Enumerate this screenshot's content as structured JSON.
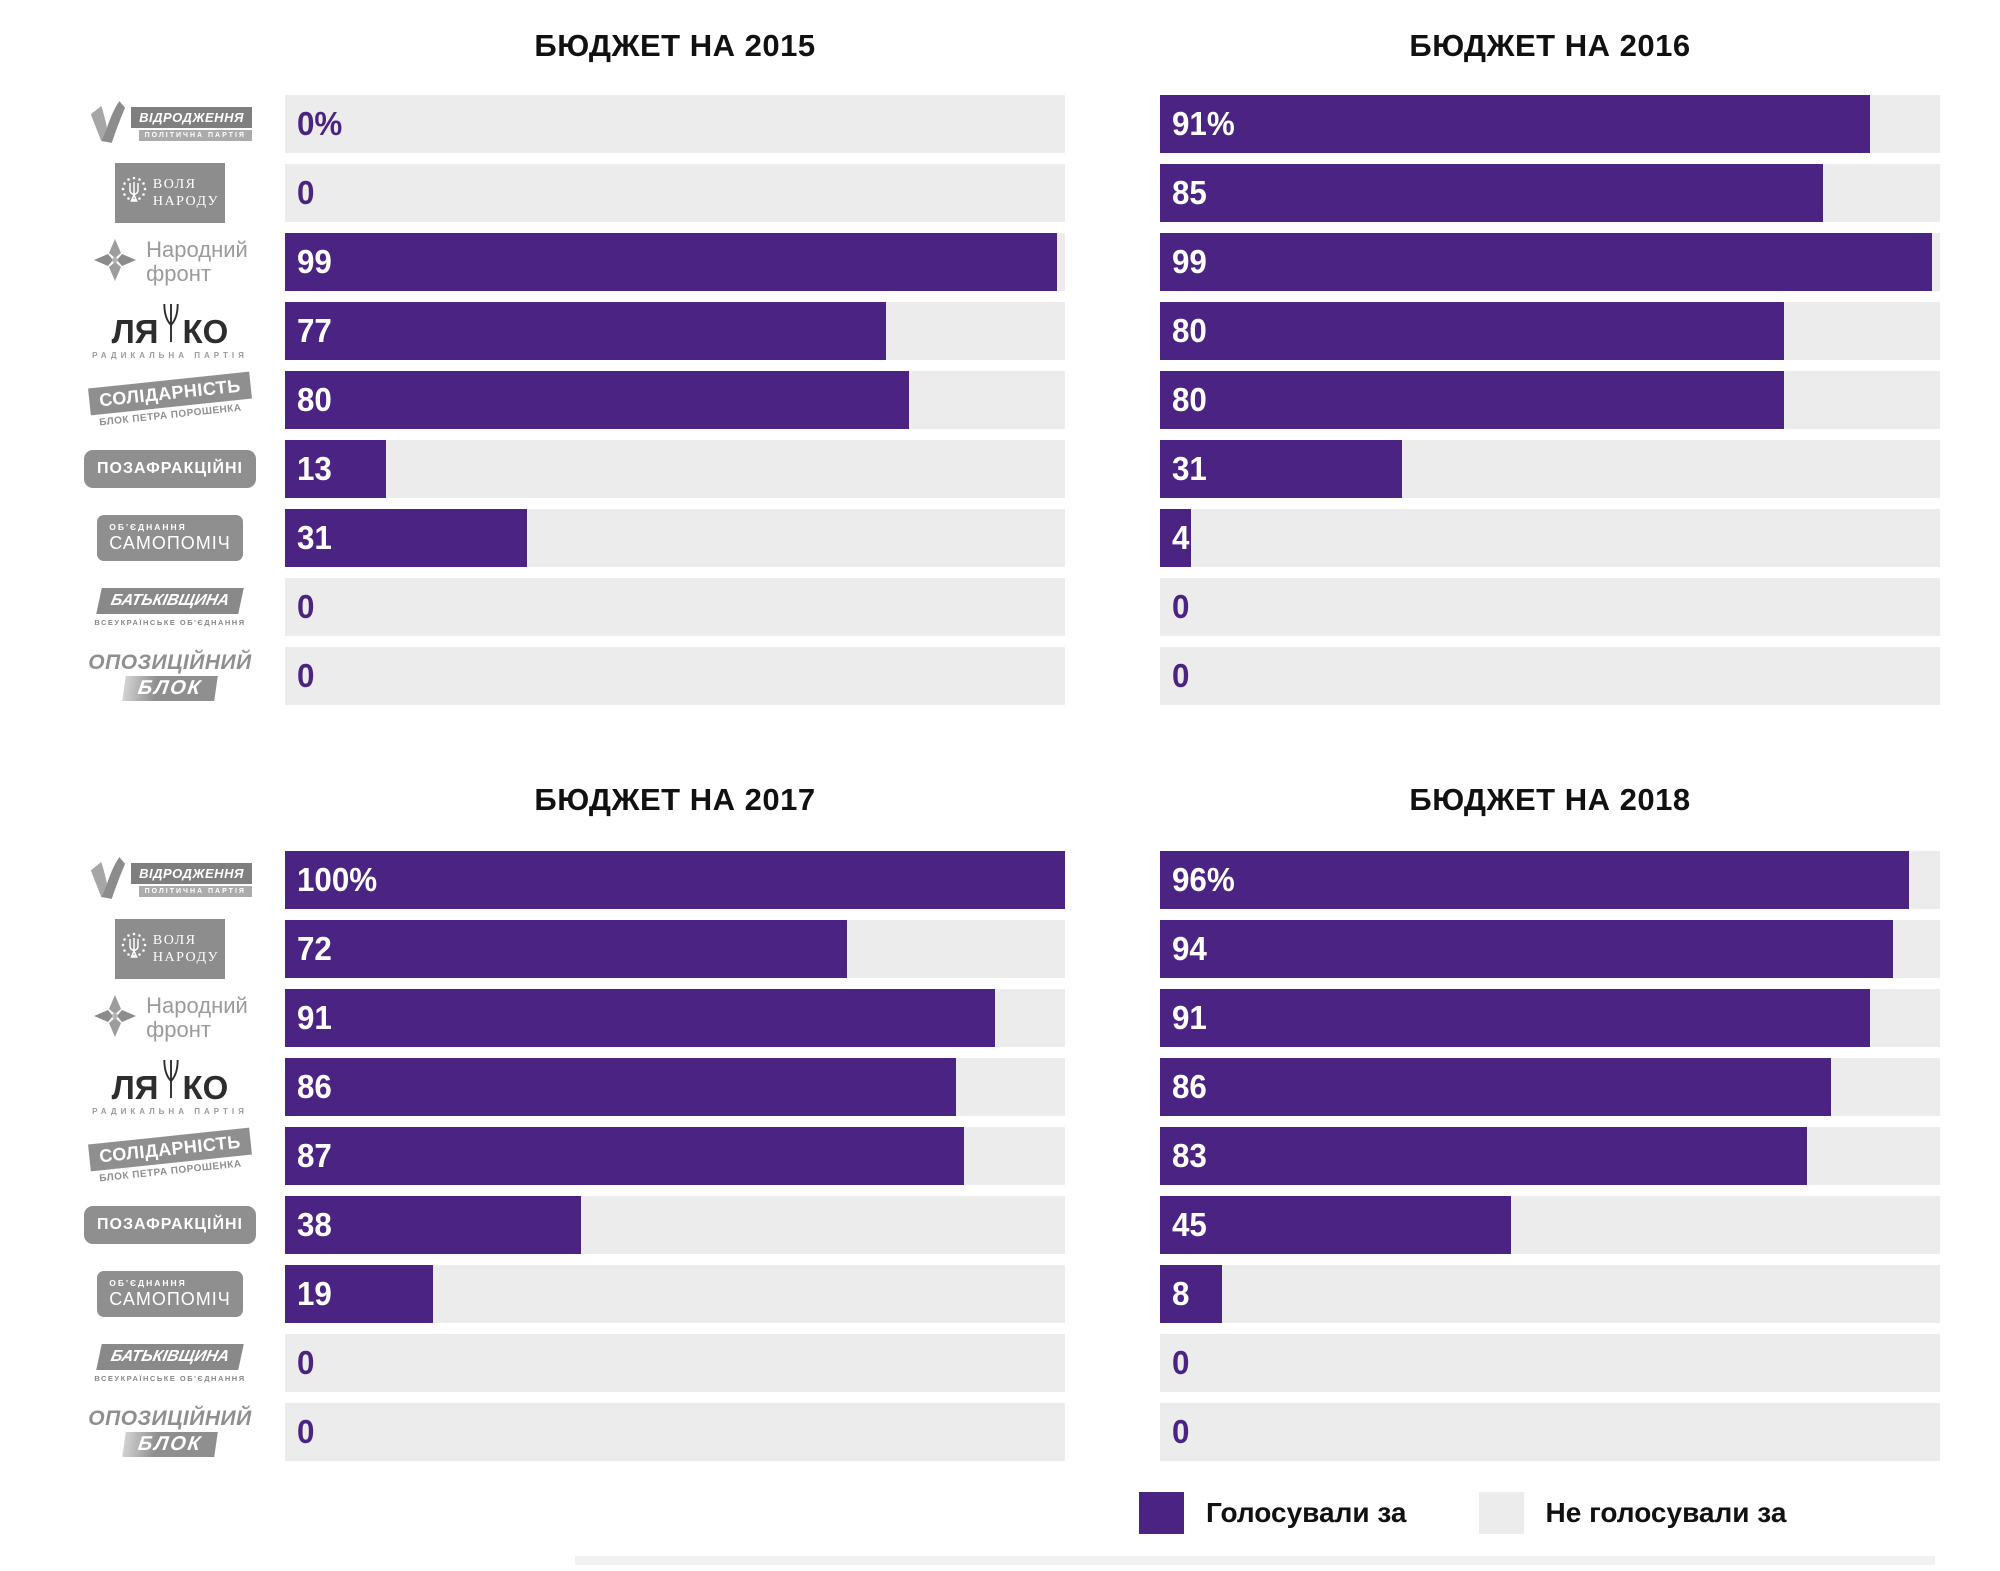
{
  "charts": [
    {
      "title": "БЮДЖЕТ НА 2015",
      "labels": [
        "0%",
        "0",
        "99",
        "77",
        "80",
        "13",
        "31",
        "0",
        "0"
      ],
      "values": [
        0,
        0,
        99,
        77,
        80,
        13,
        31,
        0,
        0
      ]
    },
    {
      "title": "БЮДЖЕТ НА 2016",
      "labels": [
        "91%",
        "85",
        "99",
        "80",
        "80",
        "31",
        "4",
        "0",
        "0"
      ],
      "values": [
        91,
        85,
        99,
        80,
        80,
        31,
        4,
        0,
        0
      ]
    },
    {
      "title": "БЮДЖЕТ НА 2017",
      "labels": [
        "100%",
        "72",
        "91",
        "86",
        "87",
        "38",
        "19",
        "0",
        "0"
      ],
      "values": [
        100,
        72,
        91,
        86,
        87,
        38,
        19,
        0,
        0
      ]
    },
    {
      "title": "БЮДЖЕТ НА 2018",
      "labels": [
        "96%",
        "94",
        "91",
        "86",
        "83",
        "45",
        "8",
        "0",
        "0"
      ],
      "values": [
        96,
        94,
        91,
        86,
        83,
        45,
        8,
        0,
        0
      ]
    }
  ],
  "parties": [
    {
      "id": "vid",
      "name": "ВІДРОДЖЕННЯ",
      "sub": "ПОЛІТИЧНА ПАРТІЯ"
    },
    {
      "id": "volia",
      "line1": "ВОЛЯ",
      "line2": "НАРОДУ"
    },
    {
      "id": "nf",
      "line1": "Народний",
      "line2": "фронт"
    },
    {
      "id": "lia",
      "part1": "ЛЯ",
      "part2": "КО",
      "sub": "РАДИКАЛЬНА ПАРТІЯ"
    },
    {
      "id": "sol",
      "name": "СОЛІДАРНІСТЬ",
      "sub": "БЛОК ПЕТРА ПОРОШЕНКА"
    },
    {
      "id": "poz",
      "name": "ПОЗАФРАКЦІЙНІ"
    },
    {
      "id": "sam",
      "top": "ОБ'ЄДНАННЯ",
      "name": "САМОПОМІЧ"
    },
    {
      "id": "bat",
      "name": "БАТЬКІВЩИНА",
      "sub": "ВСЕУКРАЇНСЬКЕ ОБ'ЄДНАННЯ"
    },
    {
      "id": "opo",
      "line1": "ОПОЗИЦІЙНИЙ",
      "line2": "БЛОК"
    }
  ],
  "legend": {
    "voted_for": "Голосували за",
    "not_voted_for": "Не голосували за"
  },
  "colors": {
    "bar_voted": "#4b2483",
    "bar_not_voted": "#ececec",
    "value_on_bar": "#ffffff",
    "value_on_track": "#4b2483",
    "title_text": "#111111",
    "logo_gray": "#8f8f8f"
  },
  "chart_data": [
    {
      "type": "bar",
      "orientation": "horizontal",
      "title": "БЮДЖЕТ НА 2015",
      "unit": "%",
      "xlim": [
        0,
        100
      ],
      "categories": [
        "Відродження",
        "Воля народу",
        "Народний фронт",
        "Радикальна партія Ляшка",
        "Солідарність (Блок Петра Порошенка)",
        "Позафракційні",
        "Об'єднання Самопоміч",
        "Батьківщина",
        "Опозиційний блок"
      ],
      "values": [
        0,
        0,
        99,
        77,
        80,
        13,
        31,
        0,
        0
      ],
      "legend": [
        "Голосували за",
        "Не голосували за"
      ],
      "grid": false
    },
    {
      "type": "bar",
      "orientation": "horizontal",
      "title": "БЮДЖЕТ НА 2016",
      "unit": "%",
      "xlim": [
        0,
        100
      ],
      "categories": [
        "Відродження",
        "Воля народу",
        "Народний фронт",
        "Радикальна партія Ляшка",
        "Солідарність (Блок Петра Порошенка)",
        "Позафракційні",
        "Об'єднання Самопоміч",
        "Батьківщина",
        "Опозиційний блок"
      ],
      "values": [
        91,
        85,
        99,
        80,
        80,
        31,
        4,
        0,
        0
      ],
      "legend": [
        "Голосували за",
        "Не голосували за"
      ],
      "grid": false
    },
    {
      "type": "bar",
      "orientation": "horizontal",
      "title": "БЮДЖЕТ НА 2017",
      "unit": "%",
      "xlim": [
        0,
        100
      ],
      "categories": [
        "Відродження",
        "Воля народу",
        "Народний фронт",
        "Радикальна партія Ляшка",
        "Солідарність (Блок Петра Порошенка)",
        "Позафракційні",
        "Об'єднання Самопоміч",
        "Батьківщина",
        "Опозиційний блок"
      ],
      "values": [
        100,
        72,
        91,
        86,
        87,
        38,
        19,
        0,
        0
      ],
      "legend": [
        "Голосували за",
        "Не голосували за"
      ],
      "grid": false
    },
    {
      "type": "bar",
      "orientation": "horizontal",
      "title": "БЮДЖЕТ НА 2018",
      "unit": "%",
      "xlim": [
        0,
        100
      ],
      "categories": [
        "Відродження",
        "Воля народу",
        "Народний фронт",
        "Радикальна партія Ляшка",
        "Солідарність (Блок Петра Порошенка)",
        "Позафракційні",
        "Об'єднання Самопоміч",
        "Батьківщина",
        "Опозиційний блок"
      ],
      "values": [
        96,
        94,
        91,
        86,
        83,
        45,
        8,
        0,
        0
      ],
      "legend": [
        "Голосували за",
        "Не голосували за"
      ],
      "grid": false
    }
  ]
}
